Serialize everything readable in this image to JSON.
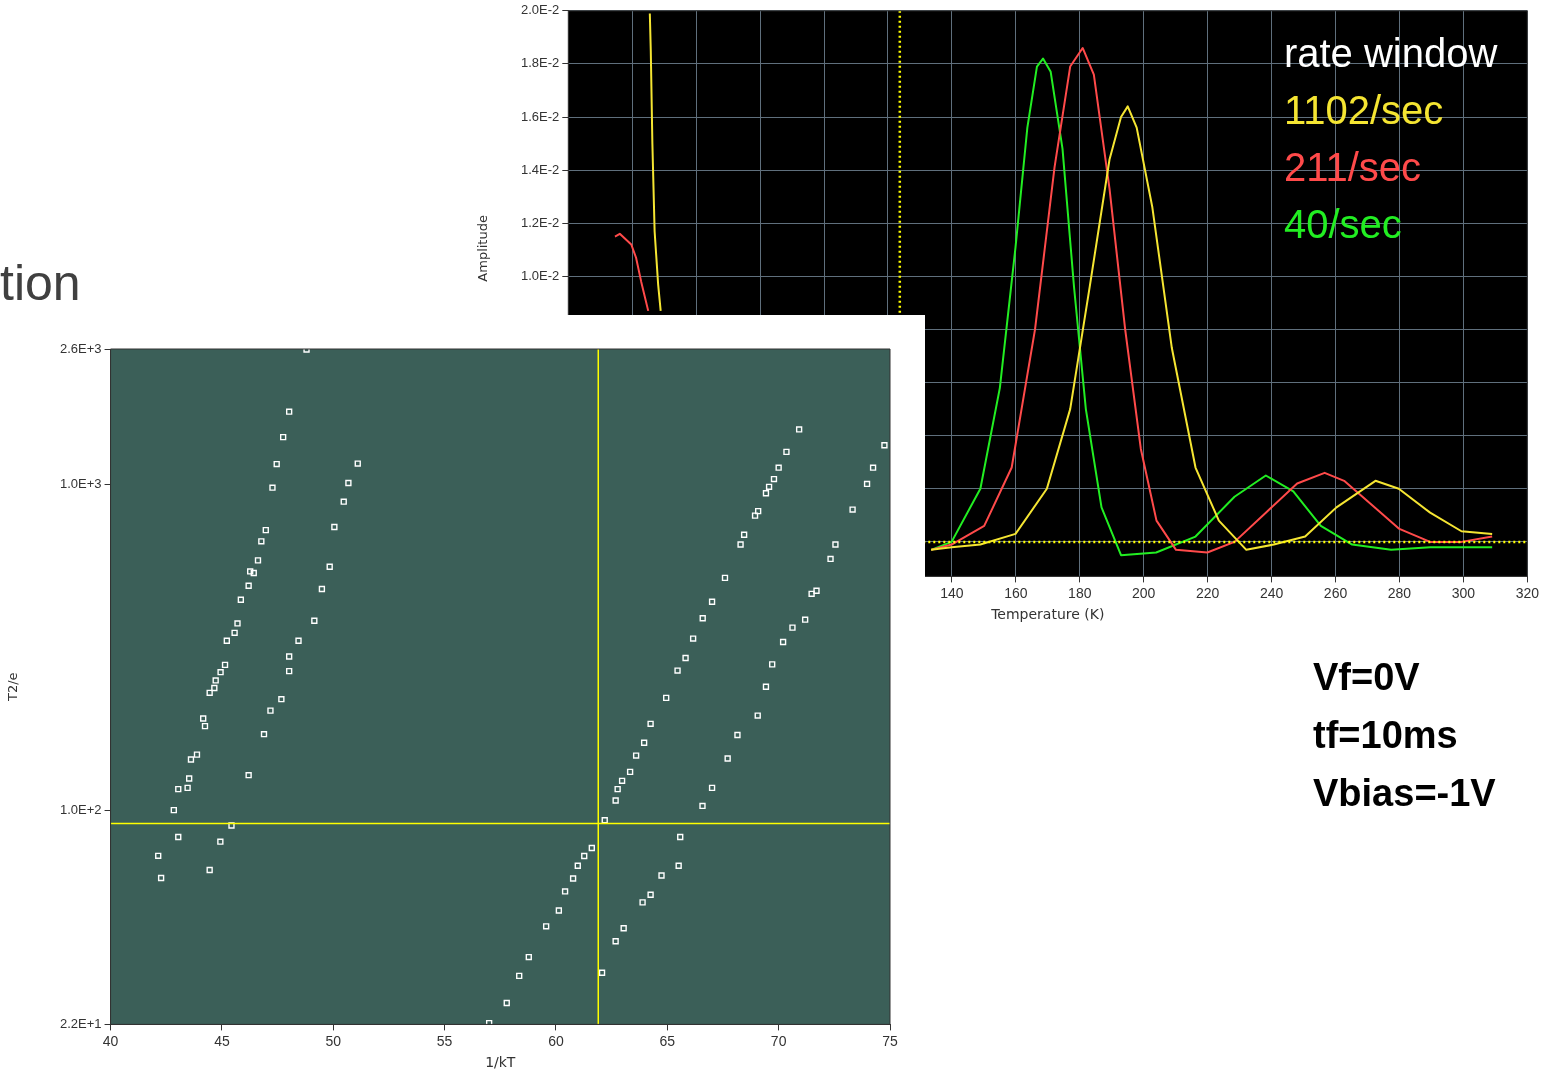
{
  "chart_data": [
    {
      "type": "line",
      "xlabel": "Temperature (K)",
      "ylabel": "Amplitude",
      "legend_title": "rate window",
      "legend": "top right",
      "grid": true,
      "xlim": [
        20,
        320
      ],
      "xticks": [
        {
          "value": 40,
          "label": null
        },
        {
          "value": 60,
          "label": null
        },
        {
          "value": 80,
          "label": null
        },
        {
          "value": 100,
          "label": null
        },
        {
          "value": 120,
          "label": null
        },
        140,
        160,
        180,
        200,
        220,
        240,
        260,
        280,
        300,
        320
      ],
      "ylim": [
        -0.0013,
        0.02
      ],
      "yticks": [
        {
          "value": 0,
          "label": null
        },
        {
          "value": 0.002,
          "label": null
        },
        {
          "value": 0.004,
          "label": null
        },
        {
          "value": 0.006,
          "label": null
        },
        {
          "value": 0.008,
          "label": null
        },
        {
          "value": 0.01,
          "label": "1.0E-2"
        },
        {
          "value": 0.012,
          "label": "1.2E-2"
        },
        {
          "value": 0.014,
          "label": "1.4E-2"
        },
        {
          "value": 0.016,
          "label": "1.6E-2"
        },
        {
          "value": 0.018,
          "label": "1.8E-2"
        },
        {
          "value": 0.02,
          "label": "2.0E-2"
        }
      ],
      "series": [
        {
          "name": "1102/sec",
          "color": "#f5e532",
          "x": [
            45.5,
            45.8,
            46.3,
            47.0,
            48.1,
            48.9,
            50,
            133.5,
            139.9,
            148.9,
            159.9,
            169.7,
            177.0,
            183.1,
            189.3,
            192.9,
            195.0,
            197.8,
            202.7,
            208.8,
            216.2,
            223.5,
            232.1,
            240.7,
            250.5,
            260.3,
            272.5,
            279.8,
            289.6,
            299.4,
            309.0
          ],
          "values": [
            0.0199,
            0.0185,
            0.015,
            0.0117,
            0.0097,
            0.0087,
            null,
            -0.0003,
            -0.0002,
            -0.0001,
            0.0003,
            0.002,
            0.005,
            0.0096,
            0.0144,
            0.016,
            0.0164,
            0.0156,
            0.0126,
            0.0073,
            0.0028,
            0.0008,
            -0.0003,
            -0.0001,
            0.0002,
            0.0013,
            0.0023,
            0.002,
            0.0011,
            0.0004,
            0.0003
          ]
        },
        {
          "name": "211/sec",
          "color": "#ff4a4a",
          "x": [
            34.6,
            36.1,
            39.7,
            41.2,
            42.8,
            45.0,
            47,
            133.5,
            139.9,
            150.1,
            158.7,
            166.0,
            172.1,
            177.0,
            180.9,
            184.4,
            189.3,
            194.2,
            199.1,
            204.0,
            210.1,
            219.9,
            228.4,
            238.2,
            248.0,
            256.6,
            262.7,
            271.3,
            279.8,
            289.6,
            299.4,
            309.0
          ],
          "values": [
            0.0115,
            0.0116,
            0.0112,
            0.0107,
            0.0098,
            0.0087,
            null,
            -0.0003,
            -0.0001,
            0.0006,
            0.0028,
            0.008,
            0.0141,
            0.0179,
            0.0186,
            0.0176,
            0.0133,
            0.008,
            0.0035,
            0.0008,
            -0.0003,
            -0.0004,
            0,
            0.0011,
            0.0022,
            0.0026,
            0.0023,
            0.0014,
            0.0005,
            0,
            0,
            0.0002
          ]
        },
        {
          "name": "40/sec",
          "color": "#22ee22",
          "x": [
            133.5,
            139.9,
            148.9,
            155.0,
            159.9,
            163.6,
            166.6,
            168.5,
            170.9,
            174.6,
            178.2,
            181.9,
            186.8,
            192.9,
            203.9,
            216.2,
            228.4,
            238.2,
            246.8,
            255.4,
            265.2,
            277.4,
            289.6,
            309.0
          ],
          "values": [
            -0.0003,
            0,
            0.002,
            0.0058,
            0.0111,
            0.0156,
            0.0179,
            0.0182,
            0.0177,
            0.0148,
            0.0096,
            0.005,
            0.0013,
            -0.0005,
            -0.0004,
            0.0002,
            0.0017,
            0.0025,
            0.0019,
            0.0006,
            -0.0001,
            -0.0003,
            -0.0002,
            -0.0002
          ]
        }
      ],
      "ref_lines": [
        {
          "axis": "x",
          "value": 123.7,
          "color": "#ffff00",
          "line_style": "dotted"
        },
        {
          "axis": "y",
          "value": 0,
          "color": "#ffff00",
          "line_style": "dotted"
        }
      ],
      "annotations": [
        "Vf=0V",
        "tf=10ms",
        "Vbias=-1V"
      ]
    },
    {
      "type": "scatter",
      "xlabel": "1/kT",
      "ylabel": "T2/e",
      "log": "y",
      "marker": "square",
      "xlim": [
        40,
        75
      ],
      "xticks": [
        40,
        45,
        50,
        55,
        60,
        65,
        70,
        75
      ],
      "ylim": [
        22,
        2600
      ],
      "yticks": [
        {
          "value": 22,
          "label": "2.2E+1"
        },
        {
          "value": 100,
          "label": "1.0E+2"
        },
        {
          "value": 1000,
          "label": "1.0E+3"
        },
        {
          "value": 2600,
          "label": "2.6E+3"
        }
      ],
      "series": [
        {
          "color": "#ffffff",
          "x": [
            48.8,
            48.02,
            47.75,
            47.46,
            47.27,
            46.97,
            46.77,
            46.62,
            46.27,
            46.43,
            46.2,
            45.85,
            45.7,
            45.57,
            45.22,
            45.14,
            44.94,
            44.72,
            44.66,
            44.45,
            44.16,
            44.24,
            43.88,
            43.61,
            43.53,
            43.46,
            43.04,
            42.84,
            43.04,
            42.14,
            42.27
          ],
          "values": [
            2590,
            1670,
            1395,
            1153,
            976,
            723,
            668,
            584,
            540,
            534,
            488,
            442,
            374,
            350,
            331,
            279,
            265,
            250,
            237,
            229,
            191,
            181,
            148,
            143,
            125,
            117,
            116,
            100,
            82.7,
            72.4,
            61.9
          ]
        },
        {
          "color": "#ffffff",
          "x": [
            51.1,
            50.68,
            50.47,
            50.05,
            49.84,
            49.49,
            49.15,
            48.44,
            48.02,
            48.02,
            47.67,
            47.18,
            46.89,
            46.2,
            45.43,
            44.93,
            44.45
          ],
          "values": [
            1157,
            1009,
            884,
            739,
            558,
            477,
            381,
            331,
            296,
            267,
            219,
            202,
            171,
            128,
            89.7,
            80.0,
            65.5
          ]
        },
        {
          "color": "#ffffff",
          "x": [
            57.0,
            57.79,
            58.35,
            58.78,
            59.56,
            60.13,
            60.41,
            60.77,
            60.98,
            61.27,
            61.61,
            62.19,
            62.68,
            62.77,
            62.97,
            63.33,
            63.6,
            63.96,
            64.25,
            64.95,
            65.46,
            65.82,
            66.16,
            66.59,
            67.01,
            67.59,
            68.29,
            68.45,
            68.94,
            69.08,
            69.43,
            69.57,
            69.79,
            70.0,
            70.35,
            70.92
          ],
          "values": [
            22.2,
            25.6,
            31.0,
            35.4,
            44.0,
            49.2,
            56.3,
            61.7,
            67.5,
            72.3,
            76.5,
            93.1,
            107,
            116,
            123,
            131,
            147,
            161,
            184,
            221,
            268,
            293,
            336,
            388,
            436,
            516,
            653,
            700,
            801,
            827,
            938,
            982,
            1037,
            1124,
            1257,
            1473
          ]
        },
        {
          "color": "#ffffff",
          "x": [
            62.07,
            62.68,
            63.04,
            63.89,
            64.25,
            64.74,
            65.51,
            65.58,
            66.58,
            67.01,
            67.71,
            68.15,
            69.06,
            69.43,
            69.71,
            70.2,
            70.62,
            71.19,
            71.48,
            71.7,
            72.33,
            72.55,
            73.32,
            73.97,
            74.24,
            74.75
          ],
          "values": [
            31.7,
            39.6,
            43.4,
            52.1,
            55.0,
            63.0,
            67.5,
            82.7,
            103,
            117,
            144,
            170,
            195,
            239,
            280,
            328,
            363,
            384,
            461,
            471,
            590,
            653,
            836,
            1002,
            1124,
            1317
          ]
        }
      ],
      "ref_lines": [
        {
          "axis": "x",
          "value": 61.9,
          "color": "#ffff00"
        },
        {
          "axis": "y",
          "value": 91,
          "color": "#ffff00"
        }
      ],
      "annotations": [
        "tion"
      ]
    }
  ]
}
